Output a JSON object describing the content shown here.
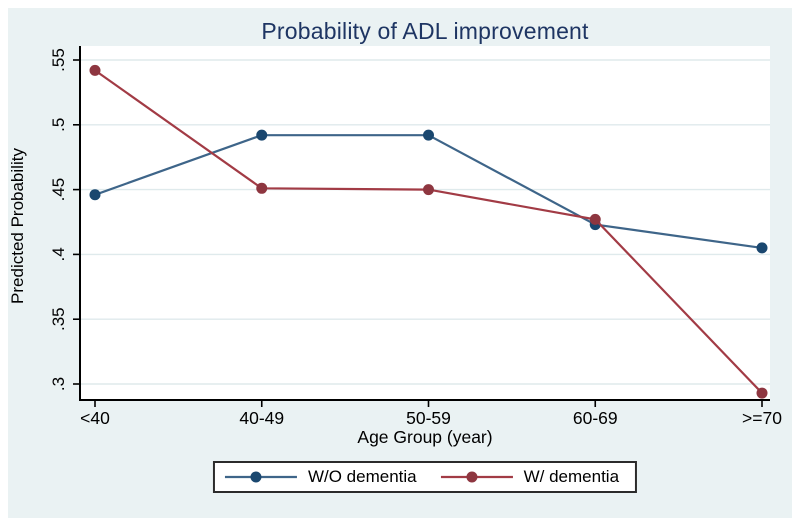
{
  "figure": {
    "page_bg": "#ffffff",
    "canvas_bg": "#eaf2f3",
    "plot_bg": "#ffffff",
    "grid_color": "#dfeaec",
    "axis_color": "#000000",
    "title_color": "#1e3563"
  },
  "chart_data": {
    "type": "line",
    "title": "Probability of ADL improvement",
    "xlabel": "Age Group (year)",
    "ylabel": "Predicted Probability",
    "categories": [
      "<40",
      "40-49",
      "50-59",
      "60-69",
      ">=70"
    ],
    "series": [
      {
        "name": "W/O dementia",
        "color": "#1a476f",
        "line_color": "#3e6589",
        "values": [
          0.446,
          0.492,
          0.492,
          0.423,
          0.405
        ]
      },
      {
        "name": "W/ dementia",
        "color": "#8e3640",
        "line_color": "#a23b45",
        "values": [
          0.542,
          0.451,
          0.45,
          0.427,
          0.293
        ]
      }
    ],
    "ylim": [
      0.288,
      0.559
    ],
    "yticks": [
      0.3,
      0.35,
      0.4,
      0.45,
      0.5,
      0.55
    ],
    "ytick_labels": [
      ".3",
      ".35",
      ".4",
      ".45",
      ".5",
      ".55"
    ],
    "grid": true,
    "legend_position": "bottom-center"
  }
}
